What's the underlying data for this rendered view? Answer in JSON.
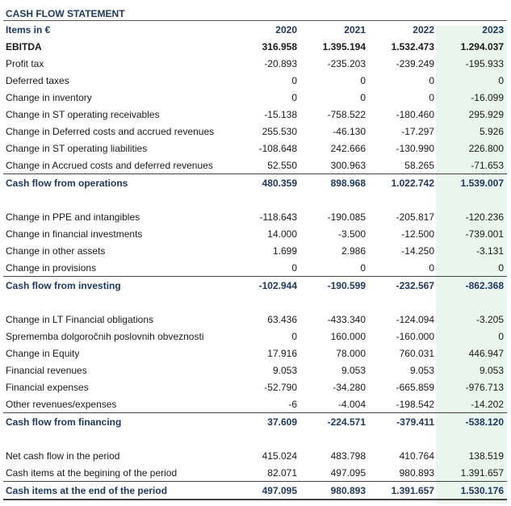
{
  "title": "CASH FLOW STATEMENT",
  "header": {
    "label": "Items in €",
    "years": [
      "2020",
      "2021",
      "2022",
      "2023"
    ]
  },
  "rows": [
    {
      "label": "EBITDA",
      "values": [
        "316.958",
        "1.395.194",
        "1.532.473",
        "1.294.037"
      ]
    },
    {
      "label": "Profit tax",
      "values": [
        "-20.893",
        "-235.203",
        "-239.249",
        "-195.933"
      ]
    },
    {
      "label": "Deferred taxes",
      "values": [
        "0",
        "0",
        "0",
        "0"
      ]
    },
    {
      "label": "Change in inventory",
      "values": [
        "0",
        "0",
        "0",
        "-16.099"
      ]
    },
    {
      "label": "Change in ST operating receivables",
      "values": [
        "-15.138",
        "-758.522",
        "-180.460",
        "295.929"
      ]
    },
    {
      "label": "Change in Deferred costs and accrued revenues",
      "values": [
        "255.530",
        "-46.130",
        "-17.297",
        "5.926"
      ]
    },
    {
      "label": "Change in ST operating liabilities",
      "values": [
        "-108.648",
        "242.666",
        "-130.990",
        "226.800"
      ]
    },
    {
      "label": "Change in Accrued costs and deferred revenues",
      "values": [
        "52.550",
        "300.963",
        "58.265",
        "-71.653"
      ]
    },
    {
      "label": "Cash flow from operations",
      "values": [
        "480.359",
        "898.968",
        "1.022.742",
        "1.539.007"
      ]
    },
    {
      "label": "Change in PPE and intangibles",
      "values": [
        "-118.643",
        "-190.085",
        "-205.817",
        "-120.236"
      ]
    },
    {
      "label": "Change in financial investments",
      "values": [
        "14.000",
        "-3.500",
        "-12.500",
        "-739.001"
      ]
    },
    {
      "label": "Change in other assets",
      "values": [
        "1.699",
        "2.986",
        "-14.250",
        "-3.131"
      ]
    },
    {
      "label": "Change in provisions",
      "values": [
        "0",
        "0",
        "0",
        "0"
      ]
    },
    {
      "label": "Cash flow from investing",
      "values": [
        "-102.944",
        "-190.599",
        "-232.567",
        "-862.368"
      ]
    },
    {
      "label": "Change in LT Financial obligations",
      "values": [
        "63.436",
        "-433.340",
        "-124.094",
        "-3.205"
      ]
    },
    {
      "label": "Sprememba dolgoročnih poslovnih obveznosti",
      "values": [
        "0",
        "160.000",
        "-160.000",
        "0"
      ]
    },
    {
      "label": "Change in Equity",
      "values": [
        "17.916",
        "78.000",
        "760.031",
        "446.947"
      ]
    },
    {
      "label": "Financial revenues",
      "values": [
        "9.053",
        "9.053",
        "9.053",
        "9.053"
      ]
    },
    {
      "label": "Financial expenses",
      "values": [
        "-52.790",
        "-34.280",
        "-665.859",
        "-976.713"
      ]
    },
    {
      "label": "Other revenues/expenses",
      "values": [
        "-6",
        "-4.004",
        "-198.542",
        "-14.202"
      ]
    },
    {
      "label": "Cash flow from financing",
      "values": [
        "37.609",
        "-224.571",
        "-379.411",
        "-538.120"
      ]
    },
    {
      "label": "Net cash flow in the period",
      "values": [
        "415.024",
        "483.798",
        "410.764",
        "138.519"
      ]
    },
    {
      "label": "Cash items at the begining of the period",
      "values": [
        "82.071",
        "497.095",
        "980.893",
        "1.391.657"
      ]
    },
    {
      "label": "Cash items at the end of the period",
      "values": [
        "497.095",
        "980.893",
        "1.391.657",
        "1.530.176"
      ]
    }
  ]
}
